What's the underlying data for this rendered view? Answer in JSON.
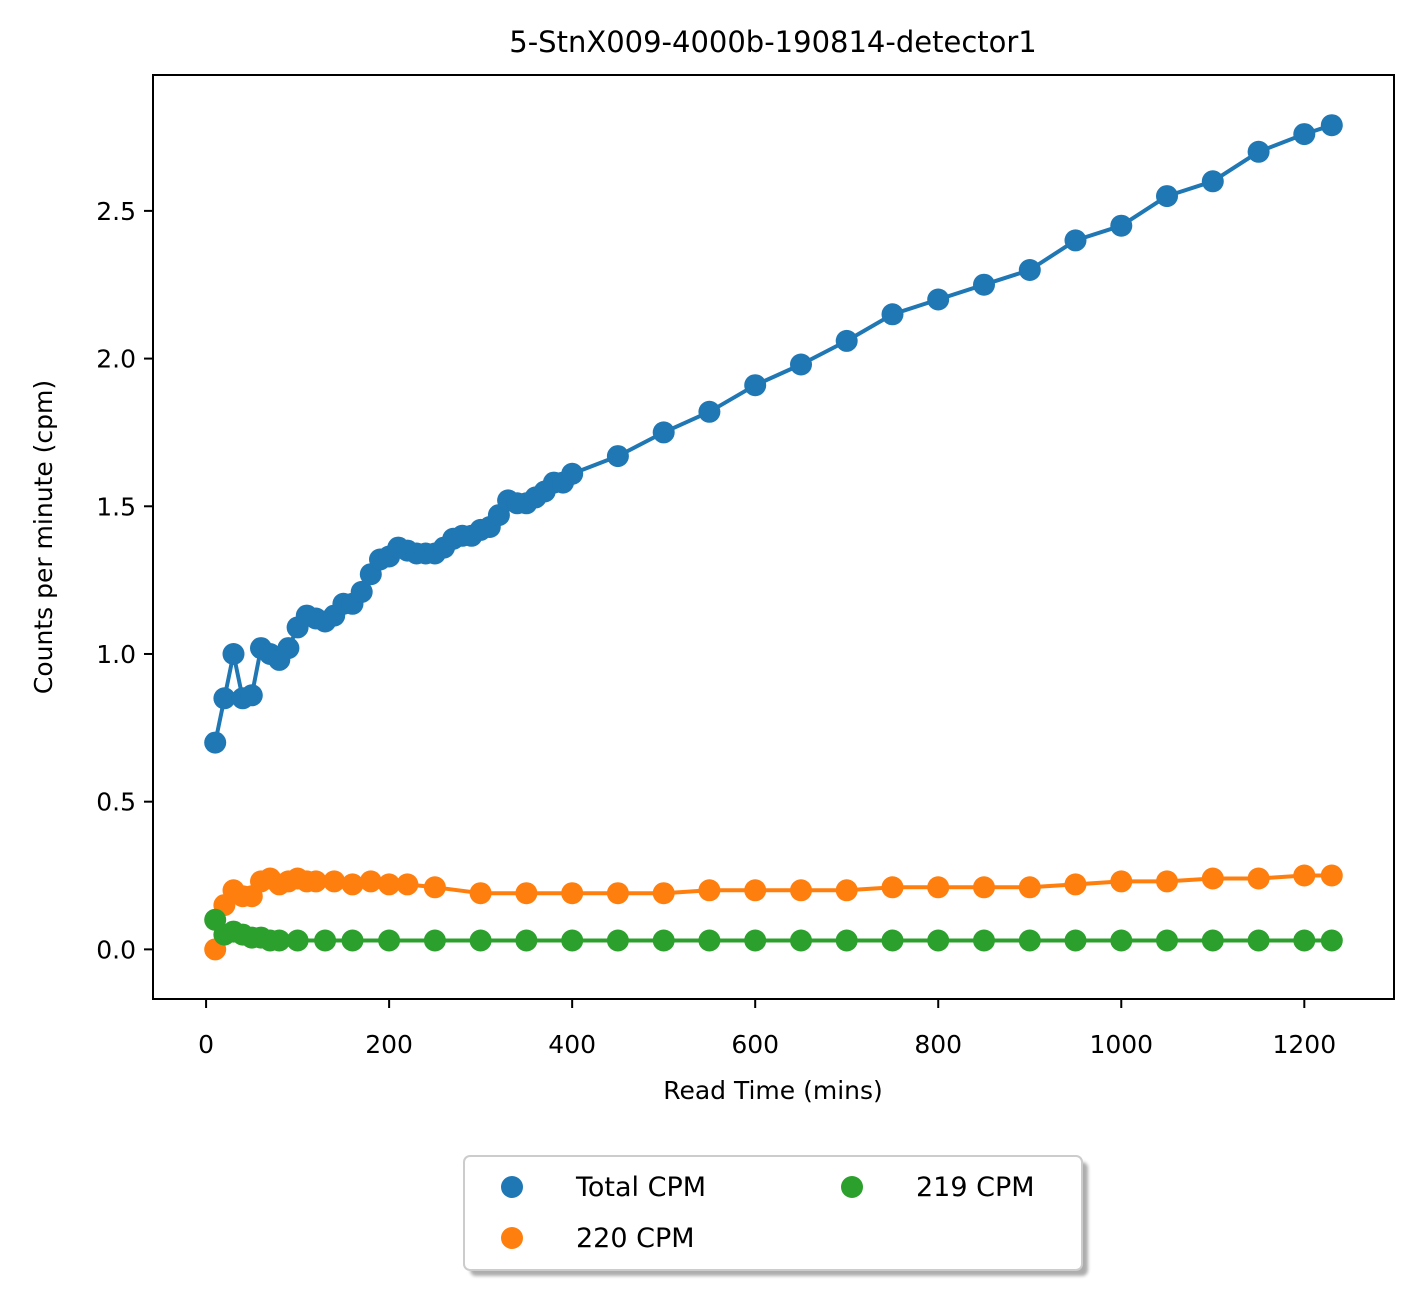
{
  "chart_data": {
    "type": "line",
    "title": "5-StnX009-4000b-190814-detector1",
    "xlabel": "Read Time (mins)",
    "ylabel": "Counts per minute (cpm)",
    "xlim": [
      -58,
      1298
    ],
    "ylim": [
      -0.168,
      2.96
    ],
    "xticks": [
      0,
      200,
      400,
      600,
      800,
      1000,
      1200
    ],
    "yticks": [
      0.0,
      0.5,
      1.0,
      1.5,
      2.0,
      2.5
    ],
    "xtick_labels": [
      "0",
      "200",
      "400",
      "600",
      "800",
      "1000",
      "1200"
    ],
    "ytick_labels": [
      "0.0",
      "0.5",
      "1.0",
      "1.5",
      "2.0",
      "2.5"
    ],
    "grid": false,
    "legend_position": "below",
    "series": [
      {
        "name": "Total CPM",
        "color": "#1f77b4",
        "x": [
          10,
          20,
          30,
          40,
          50,
          60,
          70,
          80,
          90,
          100,
          110,
          120,
          130,
          140,
          150,
          160,
          170,
          180,
          190,
          200,
          210,
          220,
          230,
          240,
          250,
          260,
          270,
          280,
          290,
          300,
          310,
          320,
          330,
          340,
          350,
          360,
          370,
          380,
          390,
          400,
          450,
          500,
          550,
          600,
          650,
          700,
          750,
          800,
          850,
          900,
          950,
          1000,
          1050,
          1100,
          1150,
          1200,
          1230
        ],
        "y": [
          0.7,
          0.85,
          1.0,
          0.85,
          0.86,
          1.02,
          1.0,
          0.98,
          1.02,
          1.09,
          1.13,
          1.12,
          1.11,
          1.13,
          1.17,
          1.17,
          1.21,
          1.27,
          1.32,
          1.33,
          1.36,
          1.35,
          1.34,
          1.34,
          1.34,
          1.36,
          1.39,
          1.4,
          1.4,
          1.42,
          1.43,
          1.47,
          1.52,
          1.51,
          1.51,
          1.53,
          1.55,
          1.58,
          1.58,
          1.61,
          1.67,
          1.75,
          1.82,
          1.91,
          1.98,
          2.06,
          2.15,
          2.2,
          2.25,
          2.3,
          2.4,
          2.45,
          2.55,
          2.6,
          2.7,
          2.76,
          2.79
        ]
      },
      {
        "name": "220 CPM",
        "color": "#ff7f0e",
        "x": [
          10,
          20,
          30,
          40,
          50,
          60,
          70,
          80,
          90,
          100,
          110,
          120,
          140,
          160,
          180,
          200,
          220,
          250,
          300,
          350,
          400,
          450,
          500,
          550,
          600,
          650,
          700,
          750,
          800,
          850,
          900,
          950,
          1000,
          1050,
          1100,
          1150,
          1200,
          1230
        ],
        "y": [
          0.0,
          0.15,
          0.2,
          0.18,
          0.18,
          0.23,
          0.24,
          0.22,
          0.23,
          0.24,
          0.23,
          0.23,
          0.23,
          0.22,
          0.23,
          0.22,
          0.22,
          0.21,
          0.19,
          0.19,
          0.19,
          0.19,
          0.19,
          0.2,
          0.2,
          0.2,
          0.2,
          0.21,
          0.21,
          0.21,
          0.21,
          0.22,
          0.23,
          0.23,
          0.24,
          0.24,
          0.25,
          0.25
        ]
      },
      {
        "name": "219 CPM",
        "color": "#2ca02c",
        "x": [
          10,
          20,
          30,
          40,
          50,
          60,
          70,
          80,
          100,
          130,
          160,
          200,
          250,
          300,
          350,
          400,
          450,
          500,
          550,
          600,
          650,
          700,
          750,
          800,
          850,
          900,
          950,
          1000,
          1050,
          1100,
          1150,
          1200,
          1230
        ],
        "y": [
          0.1,
          0.05,
          0.06,
          0.05,
          0.04,
          0.04,
          0.03,
          0.03,
          0.03,
          0.03,
          0.03,
          0.03,
          0.03,
          0.03,
          0.03,
          0.03,
          0.03,
          0.03,
          0.03,
          0.03,
          0.03,
          0.03,
          0.03,
          0.03,
          0.03,
          0.03,
          0.03,
          0.03,
          0.03,
          0.03,
          0.03,
          0.03,
          0.03
        ]
      }
    ],
    "legend": {
      "entries": [
        "Total CPM",
        "220 CPM",
        "219 CPM"
      ]
    }
  }
}
